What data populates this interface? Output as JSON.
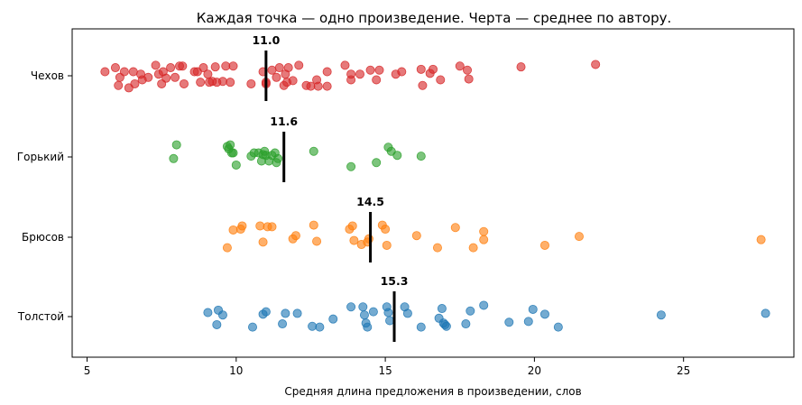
{
  "chart_data": {
    "type": "scatter",
    "title": "Каждая точка — одно произведение. Черта — среднее по автору.",
    "xlabel": "Средняя длина предложения в произведении, слов",
    "ylabel": "",
    "xlim": [
      4.5,
      28.7
    ],
    "xticks": [
      5,
      10,
      15,
      20,
      25
    ],
    "grid": false,
    "categories": [
      "Чехов",
      "Горький",
      "Брюсов",
      "Толстой"
    ],
    "series": [
      {
        "category": "Чехов",
        "color": "#d62728",
        "mean": 11.0,
        "mean_label": "11.0",
        "values": [
          5.6,
          5.95,
          6.05,
          6.1,
          6.25,
          6.4,
          6.55,
          6.6,
          6.8,
          6.85,
          7.05,
          7.3,
          7.4,
          7.5,
          7.55,
          7.65,
          7.8,
          7.95,
          8.1,
          8.2,
          8.25,
          8.6,
          8.7,
          8.8,
          8.9,
          9.05,
          9.1,
          9.2,
          9.3,
          9.35,
          9.55,
          9.65,
          9.8,
          9.9,
          10.5,
          10.9,
          11.0,
          11.0,
          11.2,
          11.35,
          11.45,
          11.6,
          11.65,
          11.7,
          11.75,
          11.9,
          12.1,
          12.35,
          12.5,
          12.7,
          12.75,
          13.05,
          13.05,
          13.65,
          13.85,
          13.85,
          14.15,
          14.5,
          14.7,
          14.8,
          15.35,
          15.55,
          16.2,
          16.25,
          16.5,
          16.6,
          16.85,
          17.5,
          17.75,
          17.8,
          19.55,
          22.05
        ],
        "jitter": [
          0.05,
          0.1,
          -0.12,
          -0.02,
          0.05,
          -0.15,
          0.05,
          -0.1,
          0.02,
          -0.05,
          -0.02,
          0.13,
          0.02,
          -0.1,
          0.05,
          -0.03,
          0.1,
          -0.02,
          0.12,
          0.12,
          -0.1,
          0.05,
          0.05,
          -0.08,
          0.1,
          0.02,
          -0.08,
          -0.07,
          0.11,
          -0.08,
          -0.07,
          0.12,
          -0.08,
          0.12,
          -0.1,
          0.05,
          -0.08,
          -0.1,
          0.07,
          -0.02,
          0.1,
          -0.12,
          0.02,
          -0.08,
          0.1,
          -0.06,
          0.13,
          -0.12,
          -0.13,
          -0.05,
          -0.13,
          0.05,
          -0.13,
          0.13,
          0.02,
          -0.05,
          0.02,
          0.07,
          -0.05,
          0.07,
          0.02,
          0.05,
          0.08,
          -0.12,
          0.03,
          0.08,
          -0.05,
          0.12,
          0.07,
          -0.04,
          0.11,
          0.14
        ]
      },
      {
        "category": "Горький",
        "color": "#2ca02c",
        "mean": 11.6,
        "mean_label": "11.6",
        "values": [
          7.9,
          8.0,
          9.7,
          9.75,
          9.8,
          9.85,
          9.9,
          10.0,
          10.5,
          10.6,
          10.75,
          10.85,
          10.9,
          10.95,
          11.0,
          11.1,
          11.2,
          11.3,
          11.35,
          11.4,
          12.6,
          13.85,
          14.7,
          15.1,
          15.2,
          15.4,
          16.2
        ],
        "jitter": [
          -0.02,
          0.15,
          0.13,
          0.1,
          0.15,
          0.05,
          0.05,
          -0.1,
          0.01,
          0.05,
          0.05,
          -0.05,
          0.03,
          0.07,
          0.02,
          -0.05,
          0.02,
          0.05,
          -0.07,
          -0.02,
          0.07,
          -0.12,
          -0.07,
          0.12,
          0.07,
          0.02,
          0.01
        ]
      },
      {
        "category": "Брюсов",
        "color": "#ff7f0e",
        "mean": 14.5,
        "mean_label": "14.5",
        "values": [
          9.7,
          9.9,
          10.15,
          10.2,
          10.8,
          10.9,
          11.05,
          11.2,
          11.9,
          12.0,
          12.6,
          12.7,
          13.8,
          13.9,
          13.95,
          14.2,
          14.4,
          14.45,
          14.9,
          15.0,
          15.05,
          16.05,
          16.75,
          17.35,
          17.95,
          18.3,
          18.3,
          20.35,
          21.5,
          27.6
        ],
        "jitter": [
          -0.13,
          0.09,
          0.1,
          0.14,
          0.14,
          -0.06,
          0.13,
          0.13,
          -0.02,
          0.02,
          0.15,
          -0.05,
          0.1,
          0.14,
          -0.04,
          -0.09,
          -0.06,
          -0.02,
          0.15,
          0.1,
          -0.1,
          0.02,
          -0.13,
          0.12,
          -0.13,
          0.07,
          -0.03,
          -0.1,
          0.01,
          -0.03
        ]
      },
      {
        "category": "Толстой",
        "color": "#1f77b4",
        "mean": 15.3,
        "mean_label": "15.3",
        "values": [
          9.05,
          9.35,
          9.4,
          9.55,
          10.55,
          10.9,
          11.0,
          11.55,
          11.65,
          12.05,
          12.55,
          12.8,
          13.25,
          13.85,
          14.25,
          14.3,
          14.35,
          14.4,
          14.6,
          15.05,
          15.1,
          15.15,
          15.65,
          15.75,
          16.2,
          16.8,
          16.9,
          16.95,
          17.0,
          17.05,
          17.7,
          17.85,
          18.3,
          19.15,
          19.8,
          19.95,
          20.35,
          20.8,
          24.25,
          27.75
        ],
        "jitter": [
          0.05,
          -0.1,
          0.08,
          0.02,
          -0.13,
          0.03,
          0.06,
          -0.09,
          0.04,
          0.04,
          -0.12,
          -0.13,
          -0.03,
          0.12,
          0.12,
          0.02,
          -0.08,
          -0.13,
          0.06,
          0.12,
          0.05,
          -0.05,
          0.12,
          0.04,
          -0.13,
          -0.02,
          0.1,
          -0.08,
          -0.1,
          -0.12,
          -0.09,
          0.07,
          0.14,
          -0.07,
          -0.06,
          0.09,
          0.03,
          -0.13,
          0.02,
          0.04
        ]
      }
    ]
  }
}
